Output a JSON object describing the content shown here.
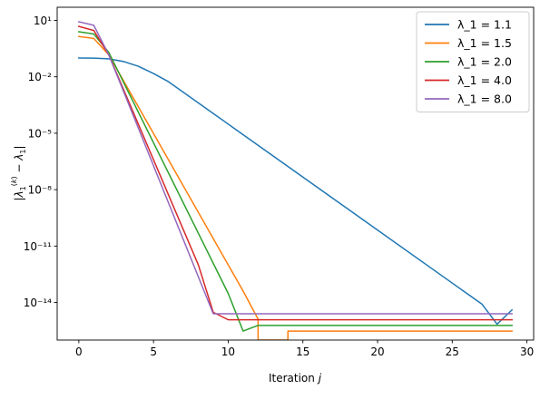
{
  "chart_data": {
    "type": "line",
    "title": "",
    "xlabel": "Iteration j",
    "ylabel": "|λ1(k) − λ1|",
    "yscale": "log",
    "xlim": [
      -1.45,
      30.45
    ],
    "ylim": [
      1e-16,
      50
    ],
    "x_ticks": [
      0,
      5,
      10,
      15,
      20,
      25,
      30
    ],
    "x_tick_labels": [
      "0",
      "5",
      "10",
      "15",
      "20",
      "25",
      "30"
    ],
    "y_ticks": [
      10,
      0.01,
      1e-05,
      1e-08,
      1e-11,
      1e-14
    ],
    "y_tick_labels": [
      "10¹",
      "10⁻²",
      "10⁻⁵",
      "10⁻⁸",
      "10⁻¹¹",
      "10⁻¹⁴"
    ],
    "grid": false,
    "legend_position": "top-right",
    "series": [
      {
        "name": "λ_1 = 1.1",
        "color": "#1f77b4",
        "x": [
          0,
          1,
          2,
          3,
          4,
          5,
          6,
          27,
          28,
          29
        ],
        "y": [
          0.1,
          0.098,
          0.09,
          0.065,
          0.036,
          0.015,
          0.0055,
          8e-15,
          7e-16,
          4e-15
        ]
      },
      {
        "name": "λ_1 = 1.5",
        "color": "#ff7f0e",
        "x": [
          0,
          1,
          2,
          11,
          12,
          12,
          13.999,
          14,
          29
        ],
        "y": [
          1.4,
          1.1,
          0.15,
          4e-14,
          1.3e-15,
          1e-16,
          1e-16,
          3e-16,
          3e-16
        ]
      },
      {
        "name": "λ_1 = 2.0",
        "color": "#2ca02c",
        "x": [
          0,
          1,
          2,
          10,
          11,
          12,
          29
        ],
        "y": [
          2.5,
          1.9,
          0.2,
          3e-14,
          3e-16,
          6e-16,
          6e-16
        ]
      },
      {
        "name": "λ_1 = 4.0",
        "color": "#d62728",
        "x": [
          0,
          1,
          2,
          8,
          9,
          10,
          29
        ],
        "y": [
          4.8,
          2.9,
          0.15,
          1e-12,
          3e-15,
          1.2e-15,
          1.2e-15
        ]
      },
      {
        "name": "λ_1 = 8.0",
        "color": "#9467bd",
        "x": [
          0,
          1,
          2,
          9,
          29
        ],
        "y": [
          8.5,
          5.5,
          0.15,
          2.5e-15,
          2.5e-15
        ]
      }
    ]
  }
}
